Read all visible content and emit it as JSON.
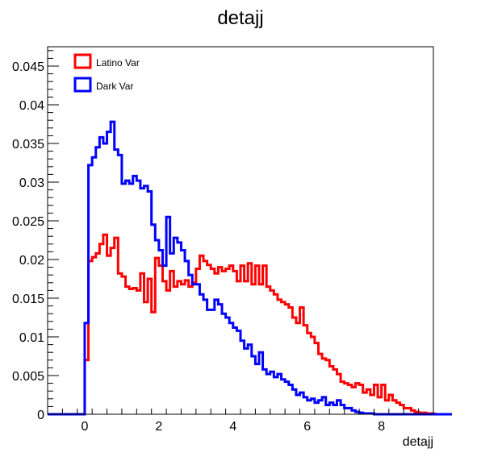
{
  "chart_data": {
    "type": "line",
    "title": "detajj",
    "xlabel": "detajj",
    "ylabel": "",
    "xlim": [
      -1,
      9.4
    ],
    "ylim": [
      0,
      0.0475
    ],
    "grid": false,
    "legend_position": "top-left",
    "bin_width": 0.1,
    "x_ticks": [
      0,
      2,
      4,
      6,
      8
    ],
    "x_tick_labels": [
      "0",
      "2",
      "4",
      "6",
      "8"
    ],
    "y_ticks": [
      0,
      0.005,
      0.01,
      0.015,
      0.02,
      0.025,
      0.03,
      0.035,
      0.04,
      0.045
    ],
    "y_tick_labels": [
      "0",
      "0.005",
      "0.01",
      "0.015",
      "0.02",
      "0.025",
      "0.03",
      "0.035",
      "0.04",
      "0.045"
    ],
    "series": [
      {
        "name": "Latino Var",
        "color": "#ff0000",
        "x_start": 0.0,
        "values": [
          0.007,
          0.0198,
          0.0203,
          0.0208,
          0.022,
          0.0232,
          0.0205,
          0.0215,
          0.0228,
          0.0182,
          0.0178,
          0.0165,
          0.0162,
          0.0163,
          0.016,
          0.0182,
          0.0145,
          0.0175,
          0.0132,
          0.0202,
          0.0192,
          0.0172,
          0.016,
          0.0185,
          0.0165,
          0.0172,
          0.0168,
          0.0173,
          0.0165,
          0.017,
          0.0188,
          0.0205,
          0.0198,
          0.0193,
          0.0188,
          0.0182,
          0.019,
          0.0185,
          0.0188,
          0.0192,
          0.0185,
          0.0172,
          0.0192,
          0.0172,
          0.0195,
          0.0168,
          0.0192,
          0.0168,
          0.0192,
          0.0165,
          0.016,
          0.0155,
          0.0148,
          0.0145,
          0.0142,
          0.0138,
          0.0125,
          0.0118,
          0.0138,
          0.0115,
          0.0105,
          0.01,
          0.0092,
          0.0078,
          0.0072,
          0.007,
          0.0062,
          0.0058,
          0.0052,
          0.0042,
          0.004,
          0.0038,
          0.0035,
          0.004,
          0.0038,
          0.0028,
          0.0032,
          0.0025,
          0.0038,
          0.0022,
          0.0038,
          0.0018,
          0.0025,
          0.0018,
          0.0015,
          0.0012,
          0.0008,
          0.0008,
          0.0005,
          0.0003,
          0.0002,
          0.0002,
          0.0001,
          0.0001,
          0.0001,
          0.0,
          0.0,
          0.0,
          0.0,
          0.0
        ]
      },
      {
        "name": "Dark Var",
        "color": "#0000ff",
        "x_start": 0.0,
        "values": [
          0.0118,
          0.0322,
          0.0332,
          0.0345,
          0.0358,
          0.035,
          0.0365,
          0.0378,
          0.0342,
          0.0335,
          0.0298,
          0.0302,
          0.0298,
          0.0308,
          0.0302,
          0.0292,
          0.0295,
          0.0288,
          0.0245,
          0.0225,
          0.0212,
          0.0192,
          0.0255,
          0.0208,
          0.0228,
          0.0222,
          0.0212,
          0.0198,
          0.018,
          0.0168,
          0.0168,
          0.0155,
          0.0148,
          0.0135,
          0.0135,
          0.0148,
          0.0142,
          0.013,
          0.0125,
          0.0118,
          0.0112,
          0.0108,
          0.0095,
          0.0085,
          0.009,
          0.0075,
          0.0065,
          0.008,
          0.0058,
          0.0052,
          0.0055,
          0.0048,
          0.0052,
          0.0045,
          0.0042,
          0.0038,
          0.0032,
          0.0025,
          0.0028,
          0.0022,
          0.0018,
          0.002,
          0.0015,
          0.0018,
          0.0022,
          0.0012,
          0.0015,
          0.0012,
          0.0018,
          0.0012,
          0.0008,
          0.0008,
          0.0005,
          0.0003,
          0.0002,
          0.0001,
          0.0001,
          0.0001,
          0.0,
          0.0,
          0.0,
          0.0,
          0.0,
          0.0,
          0.0,
          0.0,
          0.0,
          0.0,
          0.0,
          0.0,
          0.0,
          0.0,
          0.0,
          0.0,
          0.0,
          0.0,
          0.0,
          0.0,
          0.0,
          0.0
        ]
      }
    ]
  }
}
